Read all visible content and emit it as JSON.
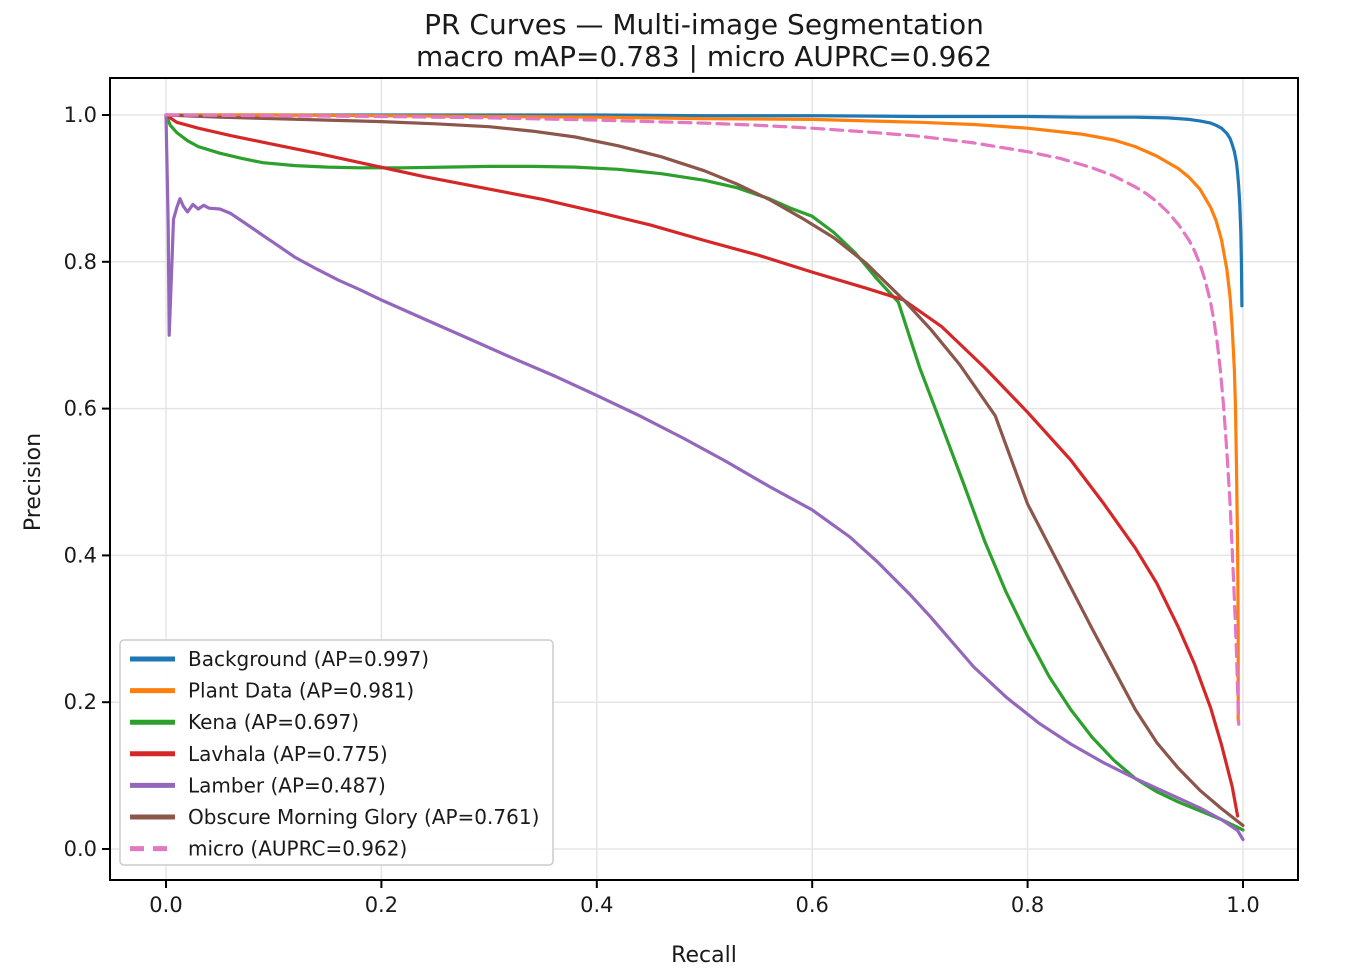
{
  "chart_data": {
    "type": "line",
    "title": "PR Curves — Multi-image Segmentation",
    "subtitle": "macro mAP=0.783 | micro AUPRC=0.962",
    "xlabel": "Recall",
    "ylabel": "Precision",
    "macro_mAP": 0.783,
    "micro_AUPRC": 0.962,
    "xlim": [
      -0.05,
      1.05
    ],
    "ylim": [
      -0.05,
      1.05
    ],
    "x_ticks": [
      0.0,
      0.2,
      0.4,
      0.6,
      0.8,
      1.0
    ],
    "y_ticks": [
      0.0,
      0.2,
      0.4,
      0.6,
      0.8,
      1.0
    ],
    "grid": true,
    "legend_position": "lower left",
    "colors": {
      "grid": "#e5e5e5",
      "spine": "#000000",
      "legend_border": "#cccccc",
      "legend_bg": "#ffffff"
    },
    "series": [
      {
        "name": "Background",
        "ap": 0.997,
        "legend_label": "Background (AP=0.997)",
        "color": "#1f77b4",
        "style": "solid",
        "points": [
          [
            0,
            1
          ],
          [
            0.1,
            1
          ],
          [
            0.2,
            1
          ],
          [
            0.3,
            1
          ],
          [
            0.4,
            1
          ],
          [
            0.5,
            0.999
          ],
          [
            0.6,
            0.999
          ],
          [
            0.7,
            0.998
          ],
          [
            0.8,
            0.998
          ],
          [
            0.85,
            0.997
          ],
          [
            0.9,
            0.997
          ],
          [
            0.93,
            0.996
          ],
          [
            0.95,
            0.994
          ],
          [
            0.96,
            0.992
          ],
          [
            0.97,
            0.989
          ],
          [
            0.975,
            0.986
          ],
          [
            0.98,
            0.982
          ],
          [
            0.985,
            0.975
          ],
          [
            0.988,
            0.968
          ],
          [
            0.99,
            0.96
          ],
          [
            0.992,
            0.95
          ],
          [
            0.994,
            0.935
          ],
          [
            0.995,
            0.921
          ],
          [
            0.996,
            0.903
          ],
          [
            0.997,
            0.878
          ],
          [
            0.998,
            0.84
          ],
          [
            0.9985,
            0.8
          ],
          [
            0.999,
            0.74
          ]
        ]
      },
      {
        "name": "Plant Data",
        "ap": 0.981,
        "legend_label": "Plant Data (AP=0.981)",
        "color": "#ff7f0e",
        "style": "solid",
        "points": [
          [
            0,
            1
          ],
          [
            0.1,
            1
          ],
          [
            0.2,
            0.999
          ],
          [
            0.3,
            0.998
          ],
          [
            0.4,
            0.997
          ],
          [
            0.5,
            0.995
          ],
          [
            0.6,
            0.994
          ],
          [
            0.65,
            0.992
          ],
          [
            0.7,
            0.99
          ],
          [
            0.75,
            0.987
          ],
          [
            0.8,
            0.982
          ],
          [
            0.85,
            0.974
          ],
          [
            0.88,
            0.966
          ],
          [
            0.9,
            0.957
          ],
          [
            0.92,
            0.944
          ],
          [
            0.94,
            0.927
          ],
          [
            0.95,
            0.915
          ],
          [
            0.96,
            0.899
          ],
          [
            0.97,
            0.874
          ],
          [
            0.975,
            0.856
          ],
          [
            0.98,
            0.83
          ],
          [
            0.985,
            0.79
          ],
          [
            0.988,
            0.752
          ],
          [
            0.99,
            0.71
          ],
          [
            0.992,
            0.652
          ],
          [
            0.993,
            0.6
          ],
          [
            0.994,
            0.52
          ],
          [
            0.995,
            0.41
          ],
          [
            0.9955,
            0.3
          ],
          [
            0.9955,
            0.175
          ]
        ]
      },
      {
        "name": "Kena",
        "ap": 0.697,
        "legend_label": "Kena (AP=0.697)",
        "color": "#2ca02c",
        "style": "solid",
        "points": [
          [
            0,
            1
          ],
          [
            0.004,
            0.986
          ],
          [
            0.01,
            0.976
          ],
          [
            0.02,
            0.965
          ],
          [
            0.03,
            0.957
          ],
          [
            0.05,
            0.948
          ],
          [
            0.07,
            0.941
          ],
          [
            0.09,
            0.935
          ],
          [
            0.12,
            0.931
          ],
          [
            0.15,
            0.929
          ],
          [
            0.18,
            0.928
          ],
          [
            0.22,
            0.928
          ],
          [
            0.26,
            0.929
          ],
          [
            0.3,
            0.93
          ],
          [
            0.34,
            0.93
          ],
          [
            0.38,
            0.929
          ],
          [
            0.42,
            0.926
          ],
          [
            0.46,
            0.92
          ],
          [
            0.5,
            0.911
          ],
          [
            0.53,
            0.901
          ],
          [
            0.56,
            0.886
          ],
          [
            0.58,
            0.873
          ],
          [
            0.6,
            0.862
          ],
          [
            0.62,
            0.84
          ],
          [
            0.64,
            0.812
          ],
          [
            0.66,
            0.777
          ],
          [
            0.68,
            0.745
          ],
          [
            0.69,
            0.7
          ],
          [
            0.7,
            0.655
          ],
          [
            0.72,
            0.578
          ],
          [
            0.74,
            0.5
          ],
          [
            0.76,
            0.42
          ],
          [
            0.78,
            0.35
          ],
          [
            0.8,
            0.29
          ],
          [
            0.82,
            0.235
          ],
          [
            0.84,
            0.19
          ],
          [
            0.86,
            0.152
          ],
          [
            0.88,
            0.121
          ],
          [
            0.9,
            0.096
          ],
          [
            0.92,
            0.078
          ],
          [
            0.94,
            0.064
          ],
          [
            0.96,
            0.052
          ],
          [
            0.98,
            0.04
          ],
          [
            1,
            0.026
          ]
        ]
      },
      {
        "name": "Lavhala",
        "ap": 0.775,
        "legend_label": "Lavhala (AP=0.775)",
        "color": "#d62728",
        "style": "solid",
        "points": [
          [
            0,
            1
          ],
          [
            0.01,
            0.99
          ],
          [
            0.03,
            0.982
          ],
          [
            0.06,
            0.972
          ],
          [
            0.1,
            0.96
          ],
          [
            0.14,
            0.948
          ],
          [
            0.19,
            0.932
          ],
          [
            0.24,
            0.916
          ],
          [
            0.3,
            0.899
          ],
          [
            0.35,
            0.885
          ],
          [
            0.4,
            0.868
          ],
          [
            0.45,
            0.85
          ],
          [
            0.5,
            0.829
          ],
          [
            0.55,
            0.809
          ],
          [
            0.6,
            0.786
          ],
          [
            0.65,
            0.764
          ],
          [
            0.685,
            0.748
          ],
          [
            0.72,
            0.712
          ],
          [
            0.76,
            0.656
          ],
          [
            0.8,
            0.595
          ],
          [
            0.84,
            0.53
          ],
          [
            0.87,
            0.472
          ],
          [
            0.9,
            0.41
          ],
          [
            0.92,
            0.362
          ],
          [
            0.94,
            0.302
          ],
          [
            0.955,
            0.252
          ],
          [
            0.97,
            0.192
          ],
          [
            0.98,
            0.142
          ],
          [
            0.99,
            0.085
          ],
          [
            0.995,
            0.045
          ]
        ]
      },
      {
        "name": "Lamber",
        "ap": 0.487,
        "legend_label": "Lamber (AP=0.487)",
        "color": "#9467bd",
        "style": "solid",
        "points": [
          [
            0,
            1
          ],
          [
            0.002,
            0.85
          ],
          [
            0.003,
            0.7
          ],
          [
            0.005,
            0.78
          ],
          [
            0.007,
            0.858
          ],
          [
            0.01,
            0.874
          ],
          [
            0.013,
            0.886
          ],
          [
            0.016,
            0.876
          ],
          [
            0.02,
            0.868
          ],
          [
            0.025,
            0.878
          ],
          [
            0.03,
            0.872
          ],
          [
            0.035,
            0.877
          ],
          [
            0.04,
            0.873
          ],
          [
            0.05,
            0.872
          ],
          [
            0.06,
            0.866
          ],
          [
            0.07,
            0.856
          ],
          [
            0.08,
            0.846
          ],
          [
            0.09,
            0.836
          ],
          [
            0.1,
            0.826
          ],
          [
            0.12,
            0.806
          ],
          [
            0.14,
            0.79
          ],
          [
            0.16,
            0.775
          ],
          [
            0.18,
            0.762
          ],
          [
            0.2,
            0.748
          ],
          [
            0.24,
            0.722
          ],
          [
            0.28,
            0.696
          ],
          [
            0.32,
            0.67
          ],
          [
            0.36,
            0.645
          ],
          [
            0.4,
            0.618
          ],
          [
            0.44,
            0.59
          ],
          [
            0.48,
            0.56
          ],
          [
            0.52,
            0.528
          ],
          [
            0.56,
            0.494
          ],
          [
            0.6,
            0.462
          ],
          [
            0.635,
            0.425
          ],
          [
            0.66,
            0.392
          ],
          [
            0.69,
            0.348
          ],
          [
            0.71,
            0.316
          ],
          [
            0.73,
            0.282
          ],
          [
            0.75,
            0.248
          ],
          [
            0.78,
            0.207
          ],
          [
            0.81,
            0.172
          ],
          [
            0.84,
            0.143
          ],
          [
            0.87,
            0.118
          ],
          [
            0.9,
            0.096
          ],
          [
            0.93,
            0.076
          ],
          [
            0.96,
            0.056
          ],
          [
            0.98,
            0.04
          ],
          [
            0.995,
            0.025
          ],
          [
            1,
            0.013
          ]
        ]
      },
      {
        "name": "Obscure Morning Glory",
        "ap": 0.761,
        "legend_label": "Obscure Morning Glory (AP=0.761)",
        "color": "#8c564b",
        "style": "solid",
        "points": [
          [
            0,
            1
          ],
          [
            0.05,
            0.997
          ],
          [
            0.1,
            0.995
          ],
          [
            0.15,
            0.993
          ],
          [
            0.2,
            0.991
          ],
          [
            0.25,
            0.988
          ],
          [
            0.3,
            0.984
          ],
          [
            0.34,
            0.978
          ],
          [
            0.38,
            0.97
          ],
          [
            0.42,
            0.958
          ],
          [
            0.46,
            0.943
          ],
          [
            0.5,
            0.924
          ],
          [
            0.53,
            0.906
          ],
          [
            0.56,
            0.885
          ],
          [
            0.59,
            0.86
          ],
          [
            0.62,
            0.833
          ],
          [
            0.65,
            0.798
          ],
          [
            0.685,
            0.748
          ],
          [
            0.71,
            0.708
          ],
          [
            0.737,
            0.66
          ],
          [
            0.77,
            0.59
          ],
          [
            0.8,
            0.47
          ],
          [
            0.83,
            0.385
          ],
          [
            0.86,
            0.3
          ],
          [
            0.88,
            0.245
          ],
          [
            0.9,
            0.19
          ],
          [
            0.92,
            0.145
          ],
          [
            0.94,
            0.11
          ],
          [
            0.96,
            0.08
          ],
          [
            0.98,
            0.055
          ],
          [
            1,
            0.032
          ]
        ]
      },
      {
        "name": "micro",
        "auprc": 0.962,
        "legend_label": "micro (AUPRC=0.962)",
        "color": "#e377c2",
        "style": "dashed",
        "points": [
          [
            0,
            1
          ],
          [
            0.1,
            0.999
          ],
          [
            0.2,
            0.998
          ],
          [
            0.3,
            0.996
          ],
          [
            0.4,
            0.993
          ],
          [
            0.5,
            0.989
          ],
          [
            0.55,
            0.986
          ],
          [
            0.6,
            0.982
          ],
          [
            0.65,
            0.977
          ],
          [
            0.7,
            0.971
          ],
          [
            0.75,
            0.962
          ],
          [
            0.8,
            0.95
          ],
          [
            0.83,
            0.941
          ],
          [
            0.86,
            0.928
          ],
          [
            0.88,
            0.917
          ],
          [
            0.9,
            0.902
          ],
          [
            0.91,
            0.893
          ],
          [
            0.92,
            0.882
          ],
          [
            0.93,
            0.868
          ],
          [
            0.94,
            0.851
          ],
          [
            0.95,
            0.829
          ],
          [
            0.955,
            0.815
          ],
          [
            0.96,
            0.797
          ],
          [
            0.965,
            0.774
          ],
          [
            0.97,
            0.744
          ],
          [
            0.973,
            0.72
          ],
          [
            0.976,
            0.69
          ],
          [
            0.979,
            0.652
          ],
          [
            0.982,
            0.603
          ],
          [
            0.985,
            0.543
          ],
          [
            0.988,
            0.47
          ],
          [
            0.99,
            0.408
          ],
          [
            0.992,
            0.34
          ],
          [
            0.994,
            0.268
          ],
          [
            0.995,
            0.218
          ],
          [
            0.996,
            0.17
          ]
        ]
      }
    ]
  }
}
